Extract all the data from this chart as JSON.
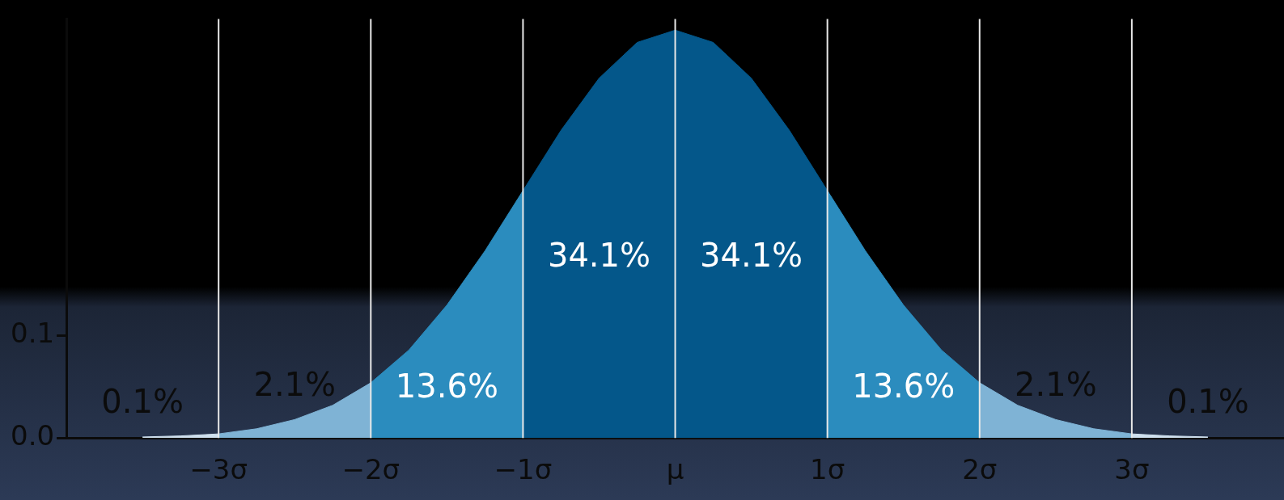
{
  "chart_data": {
    "type": "area",
    "xlim": [
      -4,
      4
    ],
    "ylim": [
      0,
      0.41
    ],
    "xticks": [
      {
        "value": -3,
        "label": "−3σ"
      },
      {
        "value": -2,
        "label": "−2σ"
      },
      {
        "value": -1,
        "label": "−1σ"
      },
      {
        "value": 0,
        "label": "μ"
      },
      {
        "value": 1,
        "label": "1σ"
      },
      {
        "value": 2,
        "label": "2σ"
      },
      {
        "value": 3,
        "label": "3σ"
      }
    ],
    "yticks": [
      {
        "value": 0,
        "label": "0.0"
      },
      {
        "value": 0.1,
        "label": "0.1"
      }
    ],
    "grid": false,
    "legend": false,
    "series": [
      {
        "color": "#04578a",
        "x": [
          -1,
          -0.75,
          -0.5,
          -0.25,
          0,
          0.25,
          0.5,
          0.75,
          1
        ],
        "values": [
          0.242,
          0.301,
          0.352,
          0.387,
          0.399,
          0.387,
          0.352,
          0.301,
          0.242
        ]
      },
      {
        "color": "#2b8cbe",
        "x": [
          -2,
          -1.75,
          -1.5,
          -1.25,
          -1
        ],
        "values": [
          0.054,
          0.086,
          0.13,
          0.183,
          0.242
        ]
      },
      {
        "color": "#2b8cbe",
        "x": [
          1,
          1.25,
          1.5,
          1.75,
          2
        ],
        "values": [
          0.242,
          0.183,
          0.13,
          0.086,
          0.054
        ]
      },
      {
        "color": "#7fb3d5",
        "x": [
          -3,
          -2.75,
          -2.5,
          -2.25,
          -2
        ],
        "values": [
          0.004,
          0.009,
          0.018,
          0.032,
          0.054
        ]
      },
      {
        "color": "#7fb3d5",
        "x": [
          2,
          2.25,
          2.5,
          2.75,
          3
        ],
        "values": [
          0.054,
          0.032,
          0.018,
          0.009,
          0.004
        ]
      },
      {
        "color": "#cfe0ee",
        "x": [
          -3.5,
          -3.25,
          -3
        ],
        "values": [
          0.001,
          0.002,
          0.004
        ]
      },
      {
        "color": "#cfe0ee",
        "x": [
          3,
          3.25,
          3.5
        ],
        "values": [
          0.004,
          0.002,
          0.001
        ]
      }
    ],
    "ref_lines": [
      {
        "axis": "x",
        "value": -3,
        "color": "#e8e8e8"
      },
      {
        "axis": "x",
        "value": -2,
        "color": "#e8e8e8"
      },
      {
        "axis": "x",
        "value": -1,
        "color": "#e8e8e8"
      },
      {
        "axis": "x",
        "value": 0,
        "color": "#e8e8e8"
      },
      {
        "axis": "x",
        "value": 1,
        "color": "#e8e8e8"
      },
      {
        "axis": "x",
        "value": 2,
        "color": "#e8e8e8"
      },
      {
        "axis": "x",
        "value": 3,
        "color": "#e8e8e8"
      }
    ],
    "annotations": [
      "0.1%",
      "2.1%",
      "13.6%",
      "34.1%",
      "34.1%",
      "13.6%",
      "2.1%",
      "0.1%"
    ]
  }
}
